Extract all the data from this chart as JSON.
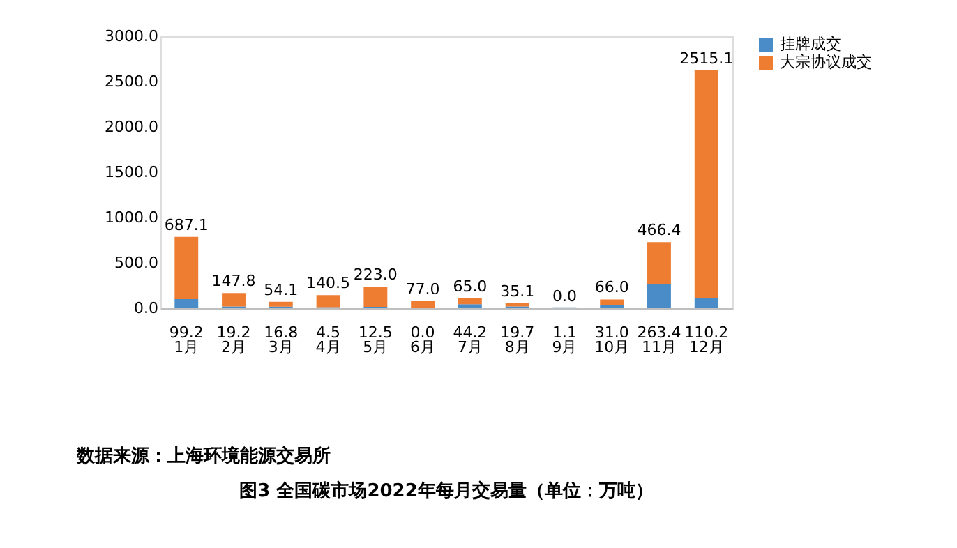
{
  "chart_data": {
    "type": "bar",
    "stacked": true,
    "title": "图3  全国碳市场2022年每月交易量（单位：万吨）",
    "categories": [
      "1月",
      "2月",
      "3月",
      "4月",
      "5月",
      "6月",
      "7月",
      "8月",
      "9月",
      "10月",
      "11月",
      "12月"
    ],
    "series": [
      {
        "name": "挂牌成交",
        "color": "#4a8cc8",
        "values": [
          99.2,
          19.2,
          16.8,
          4.5,
          12.5,
          0,
          44.2,
          19.7,
          1.1,
          31,
          263.4,
          110.2
        ],
        "value_labels": [
          "99.2",
          "19.2",
          "16.8",
          "4.5",
          "12.5",
          "0.0",
          "44.2",
          "19.7",
          "1.1",
          "31.0",
          "263.4",
          "110.2"
        ]
      },
      {
        "name": "大宗协议成交",
        "color": "#ee7d31",
        "values": [
          687.1,
          147.8,
          54.1,
          140.5,
          223,
          77,
          65,
          35.1,
          0,
          66,
          466.4,
          2515.1
        ],
        "value_labels": [
          "687.1",
          "147.8",
          "54.1",
          "140.5",
          "223.0",
          "77.0",
          "65.0",
          "35.1",
          "0.0",
          "66.0",
          "466.4",
          "2515.1"
        ]
      }
    ],
    "ylim": [
      0,
      3000
    ],
    "yticks": [
      {
        "value": 0,
        "label": "0.0"
      },
      {
        "value": 500,
        "label": "500.0"
      },
      {
        "value": 1000,
        "label": "1000.0"
      },
      {
        "value": 1500,
        "label": "1500.0"
      },
      {
        "value": 2000,
        "label": "2000.0"
      },
      {
        "value": 2500,
        "label": "2500.0"
      },
      {
        "value": 3000,
        "label": "3000.0"
      }
    ],
    "grid": false,
    "legend": "right",
    "annotations": [
      "数据来源：上海环境能源交易所"
    ]
  }
}
